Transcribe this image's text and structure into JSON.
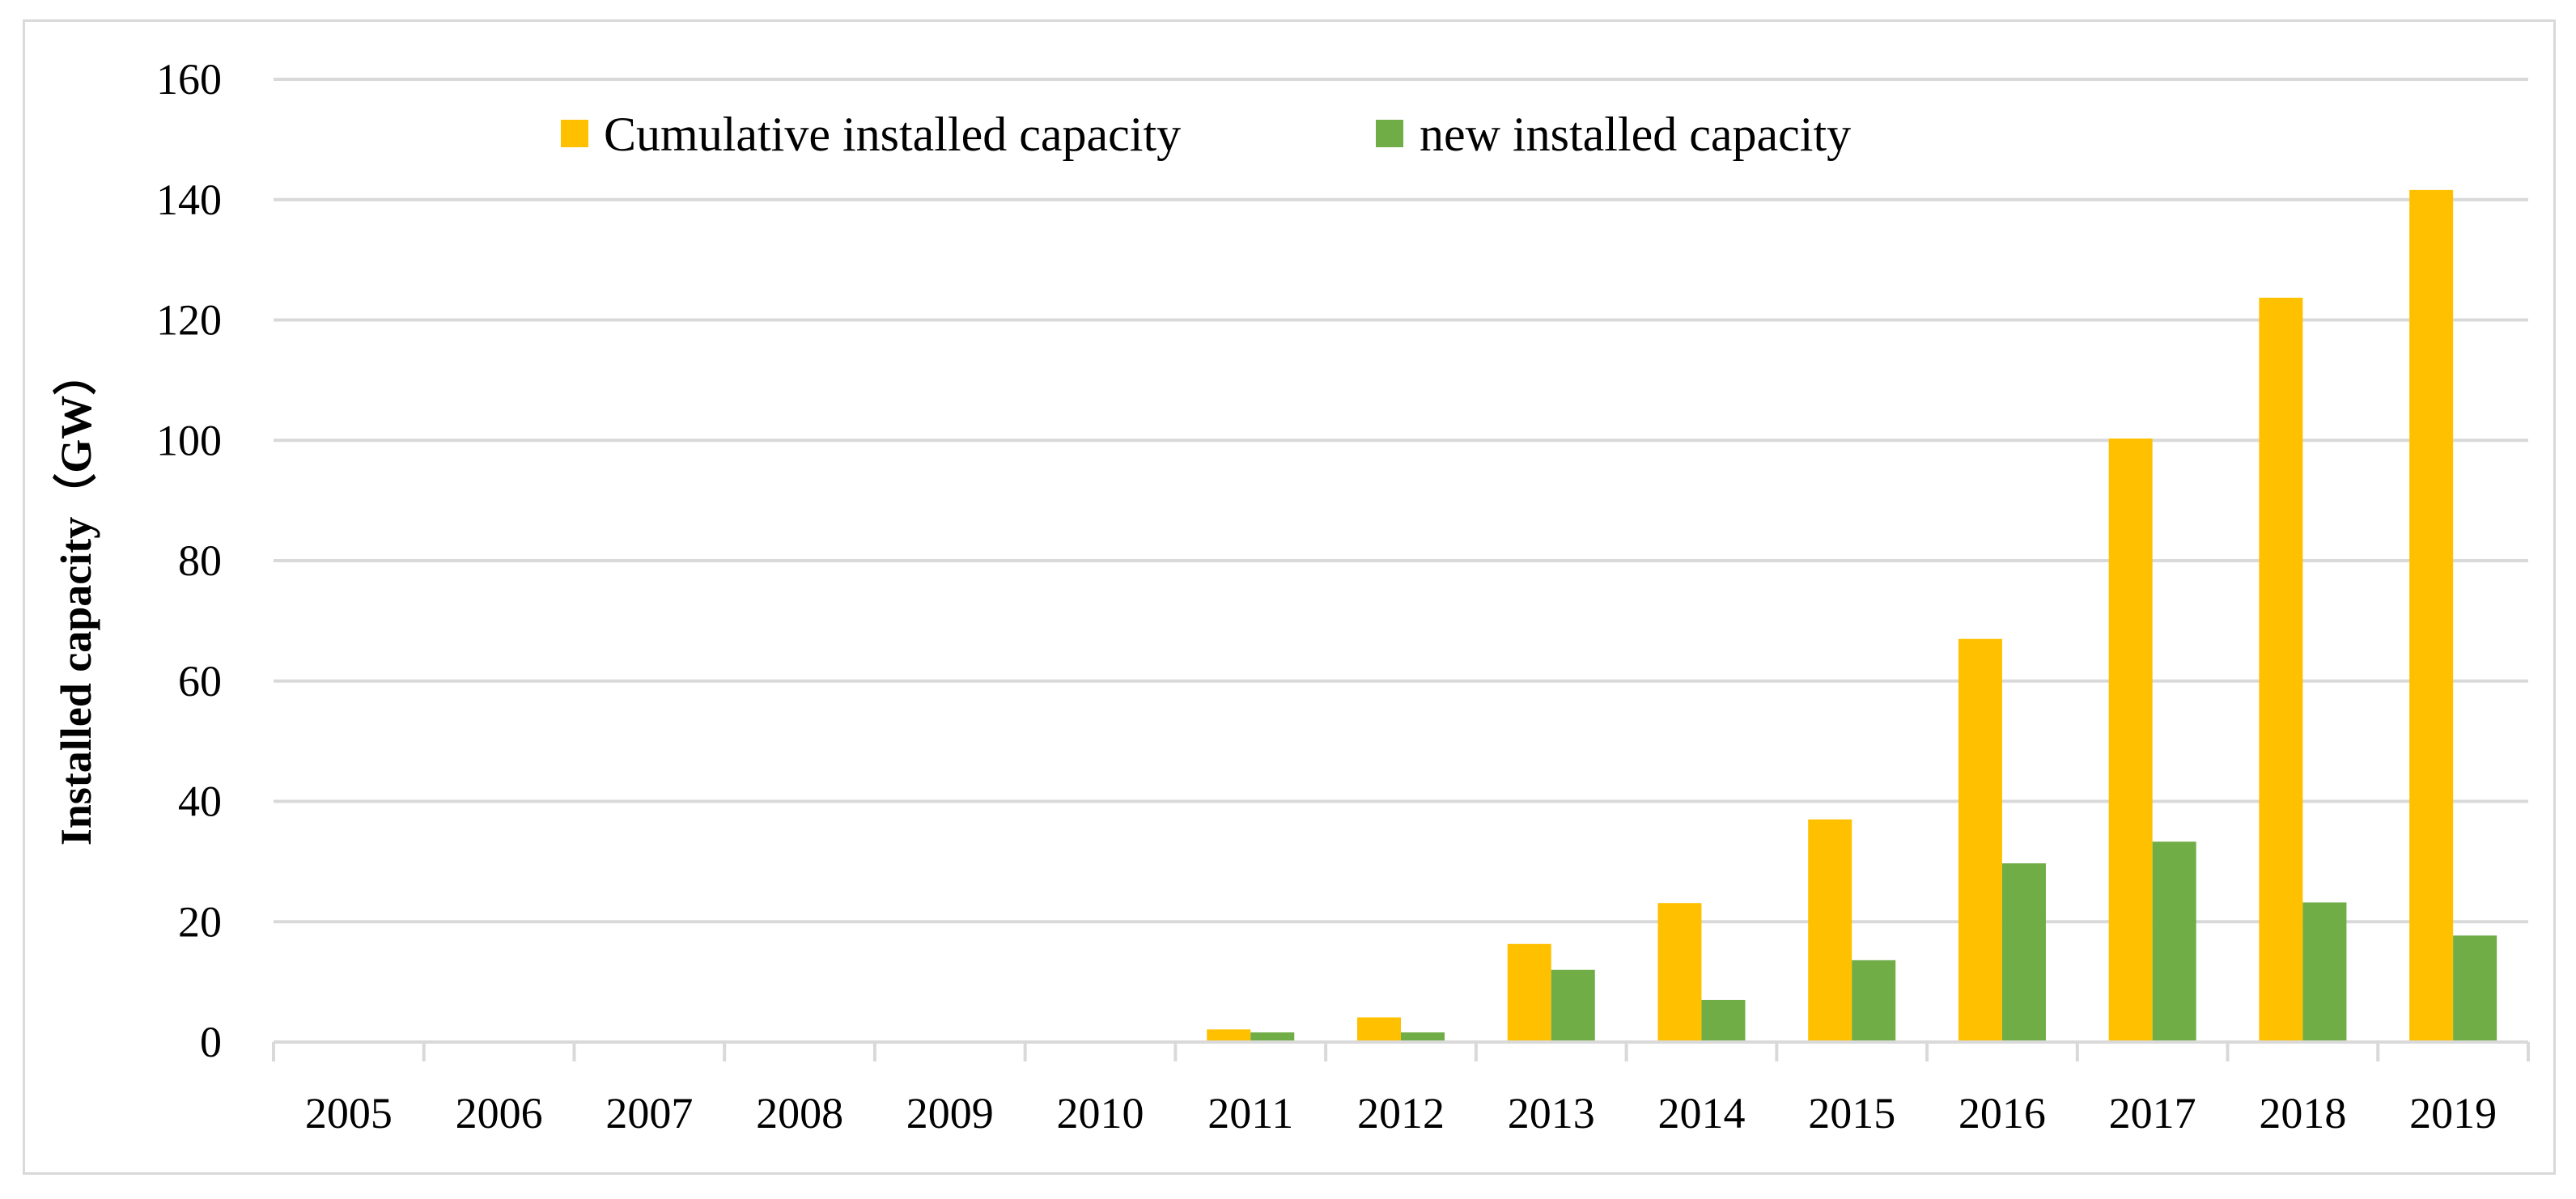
{
  "chart_data": {
    "type": "bar",
    "title": "",
    "xlabel": "",
    "ylabel": "Installed capacity（GW）",
    "ylim": [
      0,
      160
    ],
    "yticks": [
      0,
      20,
      40,
      60,
      80,
      100,
      120,
      140,
      160
    ],
    "grid": true,
    "legend_position": "top",
    "categories": [
      "2005",
      "2006",
      "2007",
      "2008",
      "2009",
      "2010",
      "2011",
      "2012",
      "2013",
      "2014",
      "2015",
      "2016",
      "2017",
      "2018",
      "2019"
    ],
    "series": [
      {
        "name": "Cumulative installed capacity",
        "color": "#FFC000",
        "values": [
          0,
          0,
          0,
          0,
          0,
          0,
          2.1,
          4.1,
          16.3,
          23.1,
          37.0,
          67.0,
          100.3,
          123.7,
          141.6
        ]
      },
      {
        "name": "new installed capacity",
        "color": "#70AD47",
        "values": [
          0,
          0,
          0,
          0,
          0,
          0,
          1.6,
          1.6,
          12.0,
          7.0,
          13.6,
          29.7,
          33.3,
          23.2,
          17.7
        ]
      }
    ],
    "colors": {
      "grid": "#D9D9D9",
      "axis": "#D9D9D9",
      "frame": "#D9D9D9"
    }
  }
}
